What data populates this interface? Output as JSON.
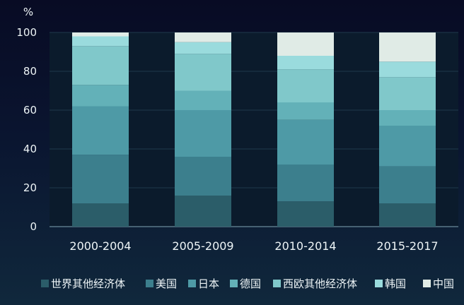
{
  "chart_data": {
    "type": "bar",
    "stacked": true,
    "title": "",
    "xlabel": "",
    "ylabel": "%",
    "ylim": [
      0,
      100
    ],
    "yticks": [
      0,
      20,
      40,
      60,
      80,
      100
    ],
    "grid": true,
    "legend_position": "bottom",
    "categories": [
      "2000-2004",
      "2005-2009",
      "2010-2014",
      "2015-2017"
    ],
    "series": [
      {
        "name": "世界其他经济体",
        "color": "#2b5d69",
        "values": [
          12,
          16,
          13,
          12
        ]
      },
      {
        "name": "美国",
        "color": "#3c7f8d",
        "values": [
          25,
          20,
          19,
          19
        ]
      },
      {
        "name": "日本",
        "color": "#4e9aa6",
        "values": [
          25,
          24,
          23,
          21
        ]
      },
      {
        "name": "德国",
        "color": "#63b1b8",
        "values": [
          11,
          10,
          9,
          8
        ]
      },
      {
        "name": "西欧其他经济体",
        "color": "#80c8ca",
        "values": [
          20,
          19,
          17,
          17
        ]
      },
      {
        "name": "韩国",
        "color": "#9adbdd",
        "values": [
          5,
          6,
          7,
          8
        ]
      },
      {
        "name": "中国",
        "color": "#e0ebe6",
        "values": [
          2,
          5,
          12,
          15
        ]
      }
    ]
  }
}
